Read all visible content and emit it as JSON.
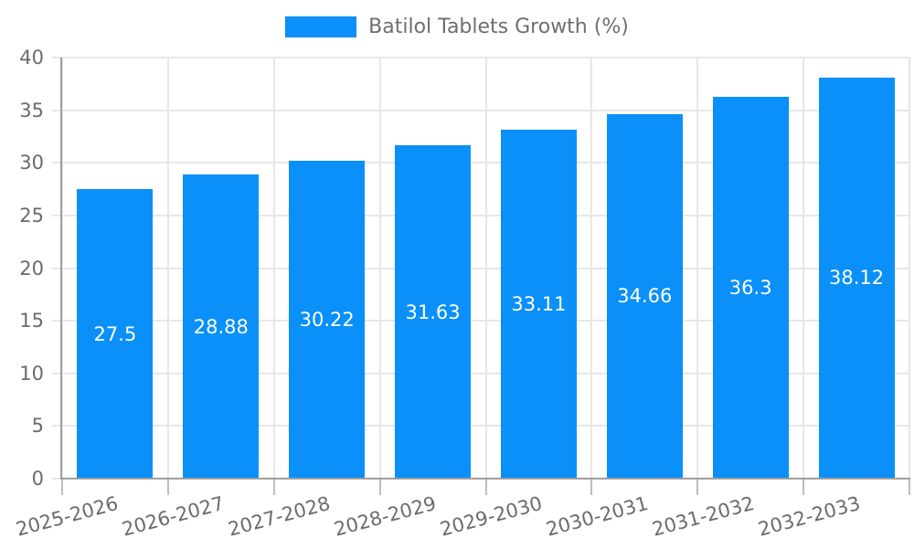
{
  "legend": {
    "label": "Batilol Tablets Growth (%)"
  },
  "style": {
    "bar_color": "#0a90f8",
    "grid_color": "#e7e7e7",
    "axis_color": "#9e9e9e",
    "tick_mark_color": "#bdbdbd",
    "tick_label_color": "#6b6b6b",
    "legend_label_color": "#6e6e6e",
    "value_label_color": "#ffffff",
    "background_color": "#ffffff"
  },
  "chart_data": {
    "type": "bar",
    "title": "",
    "xlabel": "",
    "ylabel": "",
    "categories": [
      "2025-2026",
      "2026-2027",
      "2027-2028",
      "2028-2029",
      "2029-2030",
      "2030-2031",
      "2031-2032",
      "2032-2033"
    ],
    "series": [
      {
        "name": "Batilol Tablets Growth (%)",
        "values": [
          27.5,
          28.88,
          30.22,
          31.63,
          33.11,
          34.66,
          36.3,
          38.12
        ]
      }
    ],
    "values": [
      27.5,
      28.88,
      30.22,
      31.63,
      33.11,
      34.66,
      36.3,
      38.12
    ],
    "value_labels": [
      "27.5",
      "28.88",
      "30.22",
      "31.63",
      "33.11",
      "34.66",
      "36.3",
      "38.12"
    ],
    "value_label_position": "inside-center",
    "ylim": [
      0,
      40
    ],
    "yticks": [
      0,
      5,
      10,
      15,
      20,
      25,
      30,
      35,
      40
    ],
    "grid": true,
    "legend_position": "top-center",
    "x_tick_rotation_deg": -15
  }
}
